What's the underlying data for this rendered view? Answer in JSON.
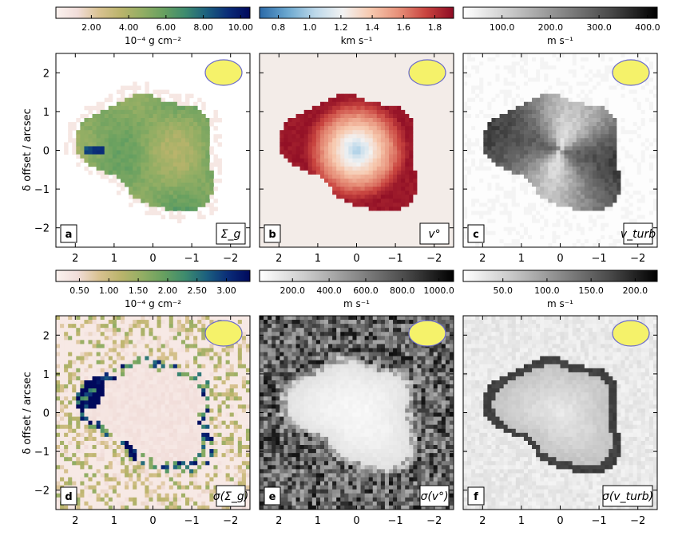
{
  "figure": {
    "ylabel": "δ offset / arcsec",
    "beam_color": "#f5f26a",
    "beam_edge": "#6a6acc"
  },
  "panels": [
    {
      "id": "a",
      "label": "a",
      "quantity": "Σ_g",
      "colorbar_ticks": [
        "2.00",
        "4.00",
        "6.00",
        "8.00",
        "10.00"
      ],
      "colorbar_unit": "10⁻⁴ g cm⁻²",
      "colormap": "gist_earth_r"
    },
    {
      "id": "b",
      "label": "b",
      "quantity": "v°",
      "colorbar_ticks": [
        "0.8",
        "1.0",
        "1.2",
        "1.4",
        "1.6",
        "1.8"
      ],
      "colorbar_unit": "km s⁻¹",
      "colormap": "RdBu_r"
    },
    {
      "id": "c",
      "label": "c",
      "quantity": "v_turb",
      "colorbar_ticks": [
        "100.0",
        "200.0",
        "300.0",
        "400.0"
      ],
      "colorbar_unit": "m s⁻¹",
      "colormap": "gray_r"
    },
    {
      "id": "d",
      "label": "d",
      "quantity": "σ(Σ_g)",
      "colorbar_ticks": [
        "0.50",
        "1.00",
        "1.50",
        "2.00",
        "2.50",
        "3.00"
      ],
      "colorbar_unit": "10⁻⁴ g cm⁻²",
      "colormap": "gist_earth_r"
    },
    {
      "id": "e",
      "label": "e",
      "quantity": "σ(v°)",
      "colorbar_ticks": [
        "200.0",
        "400.0",
        "600.0",
        "800.0",
        "1000.0"
      ],
      "colorbar_unit": "m s⁻¹",
      "colormap": "gray_r"
    },
    {
      "id": "f",
      "label": "f",
      "quantity": "σ(v_turb)",
      "colorbar_ticks": [
        "50.0",
        "100.0",
        "150.0",
        "200.0"
      ],
      "colorbar_unit": "m s⁻¹",
      "colormap": "gray_r"
    }
  ],
  "chart_data": {
    "type": "heatmap",
    "grid": "3 x 2 panels",
    "x_ticks": [
      "2",
      "1",
      "0",
      "−1",
      "−2"
    ],
    "y_ticks": [
      "2",
      "1",
      "0",
      "−1",
      "−2"
    ],
    "xlim": [
      2.5,
      -2.5
    ],
    "ylim": [
      -2.5,
      2.5
    ],
    "colorbars": [
      {
        "panel": "a",
        "range": [
          0.1,
          10.5
        ],
        "ticks": [
          2,
          4,
          6,
          8,
          10
        ]
      },
      {
        "panel": "b",
        "range": [
          0.68,
          1.92
        ],
        "ticks": [
          0.8,
          1.0,
          1.2,
          1.4,
          1.6,
          1.8
        ]
      },
      {
        "panel": "c",
        "range": [
          20,
          420
        ],
        "ticks": [
          100,
          200,
          300,
          400
        ]
      },
      {
        "panel": "d",
        "range": [
          0.1,
          3.4
        ],
        "ticks": [
          0.5,
          1.0,
          1.5,
          2.0,
          2.5,
          3.0
        ]
      },
      {
        "panel": "e",
        "range": [
          20,
          1080
        ],
        "ticks": [
          200,
          400,
          600,
          800,
          1000
        ]
      },
      {
        "panel": "f",
        "range": [
          5,
          225
        ],
        "ticks": [
          50,
          100,
          150,
          200
        ]
      }
    ]
  }
}
